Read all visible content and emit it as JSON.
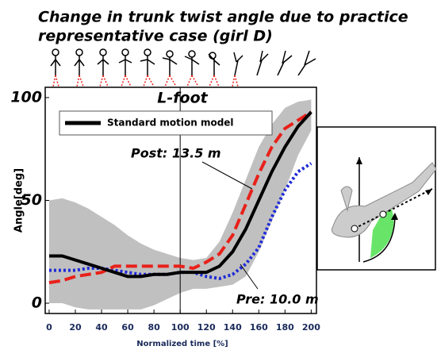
{
  "chart_data": {
    "type": "line",
    "title": "Change in trunk twist angle due to practice",
    "subtitle": "representative case (girl D)",
    "panel_label": "L-foot",
    "xlabel": "Normalized time [%]",
    "ylabel": "Angle[deg]",
    "x": [
      0,
      10,
      20,
      30,
      40,
      50,
      60,
      70,
      80,
      90,
      100,
      110,
      120,
      130,
      140,
      150,
      160,
      170,
      180,
      190,
      200
    ],
    "series": [
      {
        "name": "Standard motion model",
        "color": "#000000",
        "values": [
          23,
          23,
          21,
          19,
          17,
          15,
          13,
          13,
          14,
          14,
          15,
          15,
          15,
          18,
          25,
          36,
          50,
          64,
          76,
          86,
          93
        ]
      },
      {
        "color": "#e8211a",
        "dash": "dashed",
        "values": [
          10,
          11,
          13,
          14,
          15,
          18,
          18,
          18,
          18,
          18,
          18,
          17,
          20,
          24,
          33,
          48,
          63,
          76,
          85,
          89,
          93
        ]
      },
      {
        "color": "#1f2bd6",
        "dash": "dotted",
        "values": [
          16,
          16,
          16,
          17,
          17,
          16,
          15,
          14,
          14,
          14,
          15,
          15,
          13,
          12,
          14,
          19,
          27,
          42,
          55,
          64,
          68
        ]
      }
    ],
    "band": {
      "color": "#c0c0c0",
      "upper": [
        50,
        51,
        49,
        46,
        42,
        38,
        33,
        29,
        26,
        24,
        22,
        21,
        22,
        30,
        44,
        60,
        76,
        87,
        95,
        98,
        99
      ],
      "lower": [
        0,
        0,
        -2,
        -3,
        -3,
        -3,
        -3,
        -3,
        -1,
        2,
        5,
        7,
        7,
        8,
        9,
        13,
        25,
        40,
        55,
        72,
        84
      ]
    },
    "annotations": [
      {
        "text": "Post: 13.5 m",
        "series": 1
      },
      {
        "text": "Pre: 10.0 m",
        "series": 2
      }
    ],
    "vline": 100,
    "xlim": [
      -3,
      204
    ],
    "ylim": [
      -5,
      105
    ],
    "xticks": [
      0,
      20,
      40,
      60,
      80,
      100,
      120,
      140,
      160,
      180,
      200
    ],
    "yticks": [
      0,
      50,
      100
    ]
  }
}
